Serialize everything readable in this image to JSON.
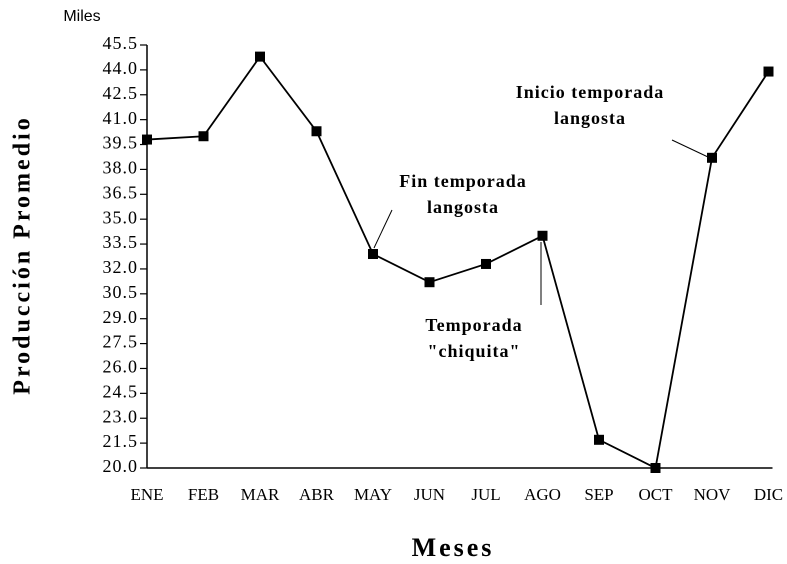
{
  "chart_data": {
    "type": "line",
    "y_unit": "Miles",
    "y_label": "Producción Promedio",
    "x_label": "Meses",
    "categories": [
      "ENE",
      "FEB",
      "MAR",
      "ABR",
      "MAY",
      "JUN",
      "JUL",
      "AGO",
      "SEP",
      "OCT",
      "NOV",
      "DIC"
    ],
    "values": [
      39.8,
      40.0,
      44.8,
      40.3,
      32.9,
      31.2,
      32.3,
      34.0,
      21.7,
      20.0,
      38.7,
      43.9
    ],
    "color": "#000000",
    "ylim": [
      20,
      45.5
    ],
    "yticks": [
      {
        "value": 20,
        "label": "20.0"
      },
      21.5,
      {
        "value": 23,
        "label": "23.0"
      },
      24.5,
      {
        "value": 26,
        "label": "26.0"
      },
      27.5,
      {
        "value": 29,
        "label": "29.0"
      },
      30.5,
      {
        "value": 32,
        "label": "32.0"
      },
      33.5,
      {
        "value": 35,
        "label": "35.0"
      },
      36.5,
      {
        "value": 38,
        "label": "38.0"
      },
      39.5,
      {
        "value": 41,
        "label": "41.0"
      },
      42.5,
      {
        "value": 44,
        "label": "44.0"
      },
      45.5
    ],
    "annotations": [
      {
        "lines": [
          "Fin temporada",
          "langosta"
        ]
      },
      {
        "lines": [
          "Temporada",
          "\"chiquita\""
        ]
      },
      {
        "lines": [
          "Inicio temporada",
          "langosta"
        ]
      }
    ]
  }
}
